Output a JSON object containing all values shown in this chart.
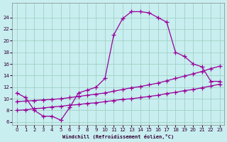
{
  "xlabel": "Windchill (Refroidissement éolien,°C)",
  "bg_color": "#c8eef0",
  "grid_color": "#99ccbb",
  "line_color": "#990099",
  "xlim": [
    -0.5,
    23.5
  ],
  "ylim": [
    5.5,
    26.5
  ],
  "xticks": [
    0,
    1,
    2,
    3,
    4,
    5,
    6,
    7,
    8,
    9,
    10,
    11,
    12,
    13,
    14,
    15,
    16,
    17,
    18,
    19,
    20,
    21,
    22,
    23
  ],
  "yticks": [
    6,
    8,
    10,
    12,
    14,
    16,
    18,
    20,
    22,
    24
  ],
  "curve1_x": [
    0,
    1,
    2,
    3,
    4,
    5,
    6,
    7,
    8,
    9,
    10,
    11,
    12,
    13,
    14,
    15,
    16,
    17,
    18,
    19,
    20,
    21,
    22,
    23
  ],
  "curve1_y": [
    11.0,
    10.2,
    8.0,
    7.0,
    7.0,
    6.3,
    8.5,
    11.0,
    11.5,
    12.0,
    13.5,
    21.0,
    23.8,
    25.0,
    25.0,
    24.8,
    24.0,
    23.2,
    18.0,
    17.3,
    16.0,
    15.5,
    13.0,
    13.0
  ],
  "curve2_x": [
    0,
    1,
    2,
    3,
    4,
    5,
    6,
    7,
    8,
    9,
    10,
    11,
    12,
    13,
    14,
    15,
    16,
    17,
    18,
    19,
    20,
    21,
    22,
    23
  ],
  "curve2_y": [
    9.5,
    9.6,
    9.7,
    9.8,
    9.9,
    10.0,
    10.2,
    10.4,
    10.6,
    10.8,
    11.0,
    11.3,
    11.6,
    11.9,
    12.1,
    12.4,
    12.7,
    13.1,
    13.5,
    13.9,
    14.3,
    14.7,
    15.2,
    15.6
  ],
  "curve3_x": [
    0,
    1,
    2,
    3,
    4,
    5,
    6,
    7,
    8,
    9,
    10,
    11,
    12,
    13,
    14,
    15,
    16,
    17,
    18,
    19,
    20,
    21,
    22,
    23
  ],
  "curve3_y": [
    8.0,
    8.1,
    8.3,
    8.4,
    8.6,
    8.7,
    8.9,
    9.0,
    9.2,
    9.3,
    9.5,
    9.7,
    9.9,
    10.0,
    10.2,
    10.4,
    10.6,
    10.9,
    11.1,
    11.4,
    11.6,
    11.9,
    12.2,
    12.5
  ]
}
